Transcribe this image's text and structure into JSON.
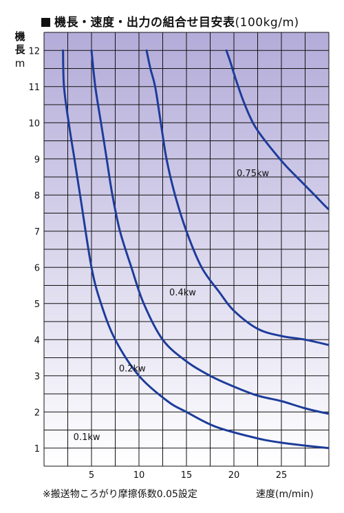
{
  "title": "機長・速度・出力の組合せ目安表",
  "title_unit": "(100kg/m)",
  "footnote": "※搬送物ころがり摩擦係数0.05設定",
  "chart_data": {
    "type": "line",
    "ylabel": "機長",
    "ylabel_unit": "m",
    "xlabel": "速度(m/min)",
    "xlim": [
      0,
      30
    ],
    "ylim": [
      0.5,
      12.5
    ],
    "xticks": [
      5,
      10,
      15,
      20,
      25
    ],
    "yticks": [
      1,
      2,
      3,
      4,
      5,
      6,
      7,
      8,
      9,
      10,
      11,
      12
    ],
    "grid": true,
    "colors": {
      "line": "#1d3c9a",
      "background_top": "#b3acd9",
      "background_bottom": "#ffffff",
      "grid": "#111111"
    },
    "series": [
      {
        "name": "0.1kw",
        "label_pos": [
          4.5,
          1.3
        ],
        "x": [
          2.0,
          2.1,
          2.6,
          3.2,
          3.8,
          5.0,
          6.0,
          7.5,
          10.0,
          13.0,
          15.0,
          18.0,
          22.0,
          25.0,
          30.0,
          31.5
        ],
        "y": [
          12.0,
          11.0,
          10.0,
          9.0,
          8.0,
          6.0,
          5.0,
          4.0,
          3.0,
          2.3,
          2.0,
          1.6,
          1.3,
          1.15,
          1.0,
          0.98
        ]
      },
      {
        "name": "0.2kw",
        "label_pos": [
          9.3,
          3.2
        ],
        "x": [
          5.0,
          5.4,
          6.0,
          6.6,
          7.2,
          8.0,
          9.2,
          10.5,
          12.5,
          15.0,
          17.5,
          20.0,
          22.5,
          25.0,
          27.5,
          30.0,
          31.5
        ],
        "y": [
          12.0,
          11.0,
          10.0,
          9.0,
          8.0,
          7.0,
          6.0,
          5.0,
          4.0,
          3.4,
          3.0,
          2.7,
          2.45,
          2.3,
          2.1,
          1.95,
          1.9
        ]
      },
      {
        "name": "0.4kw",
        "label_pos": [
          14.6,
          5.3
        ],
        "x": [
          10.8,
          11.2,
          11.7,
          12.3,
          12.9,
          13.8,
          15.0,
          16.6,
          18.5,
          20.0,
          22.5,
          25.0,
          27.5,
          30.0,
          31.5
        ],
        "y": [
          12.0,
          11.5,
          11.0,
          10.0,
          9.0,
          8.0,
          7.0,
          6.0,
          5.3,
          4.8,
          4.3,
          4.1,
          4.0,
          3.85,
          3.75
        ]
      },
      {
        "name": "0.75kw",
        "label_pos": [
          22.0,
          8.6
        ],
        "x": [
          19.2,
          19.6,
          20.2,
          21.0,
          22.0,
          23.0,
          24.2,
          25.5,
          27.0,
          28.5,
          30.0,
          31.5
        ],
        "y": [
          12.0,
          11.7,
          11.2,
          10.6,
          10.0,
          9.6,
          9.2,
          8.8,
          8.4,
          8.0,
          7.6,
          7.3
        ]
      }
    ]
  }
}
